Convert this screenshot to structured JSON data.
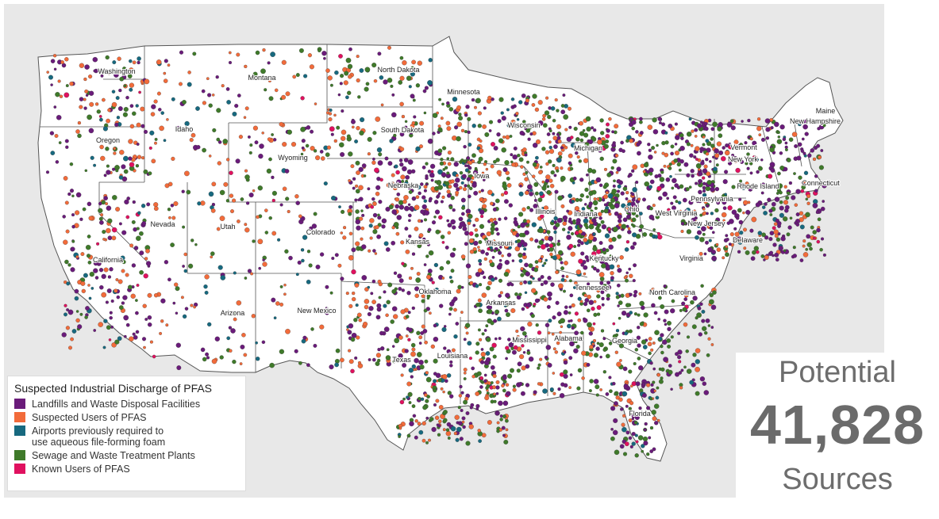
{
  "colors": {
    "background": "#e8e8e8",
    "land": "#ffffff",
    "border": "#555555",
    "landfills": "#6a1b7a",
    "suspected": "#f26b3a",
    "airports": "#17697f",
    "sewage": "#3f7a2a",
    "known": "#e0115f"
  },
  "legend": {
    "title": "Suspected Industrial Discharge of PFAS",
    "items": [
      {
        "label": "Landfills and Waste Disposal Facilities",
        "color": "#6a1b7a",
        "icon": "square"
      },
      {
        "label": "Suspected Users of PFAS",
        "color": "#f26b3a",
        "icon": "square"
      },
      {
        "label": "Airports previously required to\nuse aqueous file-forming foam",
        "color": "#17697f",
        "icon": "square"
      },
      {
        "label": "Sewage and Waste Treatment Plants",
        "color": "#3f7a2a",
        "icon": "square"
      },
      {
        "label": "Known Users of PFAS",
        "color": "#e0115f",
        "icon": "square"
      }
    ]
  },
  "stat": {
    "top": "Potential",
    "number": "41,828",
    "bottom": "Sources"
  },
  "states": [
    "Washington",
    "Montana",
    "North Dakota",
    "Minnesota",
    "Oregon",
    "Idaho",
    "South Dakota",
    "Wisconsin",
    "Michigan",
    "Maine",
    "New Hampshire",
    "Vermont",
    "New York",
    "Wyoming",
    "Nebraska",
    "Iowa",
    "Rhode Island",
    "Connecticut",
    "Pennsylvania",
    "Nevada",
    "Utah",
    "Colorado",
    "Illinois",
    "Indiana",
    "Ohio",
    "West Virginia",
    "New Jersey",
    "Delaware",
    "California",
    "Kansas",
    "Missouri",
    "Kentucky",
    "Virginia",
    "Tennessee",
    "North Carolina",
    "Oklahoma",
    "Arkansas",
    "Arizona",
    "New Mexico",
    "Mississippi",
    "Alabama",
    "Georgia",
    "Texas",
    "Louisiana",
    "Florida"
  ]
}
